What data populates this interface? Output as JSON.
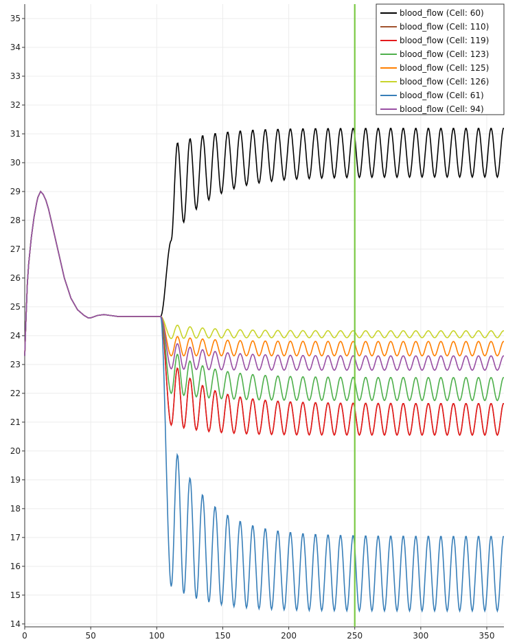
{
  "chart_data": {
    "type": "line",
    "title": "",
    "xlabel": "",
    "ylabel": "",
    "xlim": [
      0,
      363
    ],
    "ylim": [
      13.9,
      35.5
    ],
    "grid": true,
    "legend_position": "top-right",
    "x_ticks": [
      "0",
      "50",
      "100",
      "150",
      "200",
      "250",
      "300",
      "350"
    ],
    "y_ticks": [
      "14",
      "15",
      "16",
      "17",
      "18",
      "19",
      "20",
      "21",
      "22",
      "23",
      "24",
      "25",
      "26",
      "27",
      "28",
      "29",
      "30",
      "31",
      "32",
      "33",
      "34",
      "35"
    ],
    "vertical_marker": {
      "x": 250,
      "color": "#7ac943"
    },
    "initial_profile": {
      "x": [
        0,
        1,
        2,
        3,
        5,
        7,
        9,
        10,
        12,
        14,
        16,
        18,
        20,
        25,
        30,
        35,
        40,
        45,
        48,
        50,
        52,
        55,
        60,
        65,
        70,
        80,
        90,
        100,
        103
      ],
      "y": [
        23.3,
        24.6,
        25.8,
        26.5,
        27.4,
        28.1,
        28.6,
        28.8,
        29.0,
        28.9,
        28.7,
        28.4,
        28.0,
        27.0,
        26.0,
        25.3,
        24.9,
        24.7,
        24.62,
        24.62,
        24.65,
        24.7,
        24.73,
        24.7,
        24.67,
        24.67,
        24.67,
        24.67,
        24.67
      ]
    },
    "series": [
      {
        "name": "blood_flow (Cell: 60)",
        "color": "#000000",
        "baseline": 24.67,
        "steady_mean": 30.35,
        "steady_amplitude": 0.85,
        "first_peak": 30.6,
        "first_trough": 27.3
      },
      {
        "name": "blood_flow (Cell: 110)",
        "color": "#a0522d",
        "baseline": 24.67,
        "steady_mean": 21.1,
        "steady_amplitude": 0.55,
        "first_peak": 23.1,
        "first_trough": 20.9
      },
      {
        "name": "blood_flow (Cell: 119)",
        "color": "#e41a1c",
        "baseline": 24.67,
        "steady_mean": 21.1,
        "steady_amplitude": 0.55,
        "first_peak": 23.1,
        "first_trough": 20.9
      },
      {
        "name": "blood_flow (Cell: 123)",
        "color": "#4daf4a",
        "baseline": 24.67,
        "steady_mean": 22.15,
        "steady_amplitude": 0.4,
        "first_peak": 23.5,
        "first_trough": 22.0
      },
      {
        "name": "blood_flow (Cell: 125)",
        "color": "#ff7f00",
        "baseline": 24.67,
        "steady_mean": 23.55,
        "steady_amplitude": 0.25,
        "first_peak": 24.0,
        "first_trough": 23.3
      },
      {
        "name": "blood_flow (Cell: 126)",
        "color": "#c8d42a",
        "baseline": 24.67,
        "steady_mean": 24.05,
        "steady_amplitude": 0.12,
        "first_peak": 24.4,
        "first_trough": 23.9
      },
      {
        "name": "blood_flow (Cell: 61)",
        "color": "#377eb8",
        "baseline": 24.67,
        "steady_mean": 15.75,
        "steady_amplitude": 1.3,
        "first_peak": 20.4,
        "first_trough": 15.3
      },
      {
        "name": "blood_flow (Cell: 94)",
        "color": "#984ea3",
        "baseline": 24.67,
        "steady_mean": 23.05,
        "steady_amplitude": 0.25,
        "first_peak": 23.8,
        "first_trough": 22.85
      }
    ],
    "oscillation_start": 103,
    "oscillation_period": 9.5
  }
}
